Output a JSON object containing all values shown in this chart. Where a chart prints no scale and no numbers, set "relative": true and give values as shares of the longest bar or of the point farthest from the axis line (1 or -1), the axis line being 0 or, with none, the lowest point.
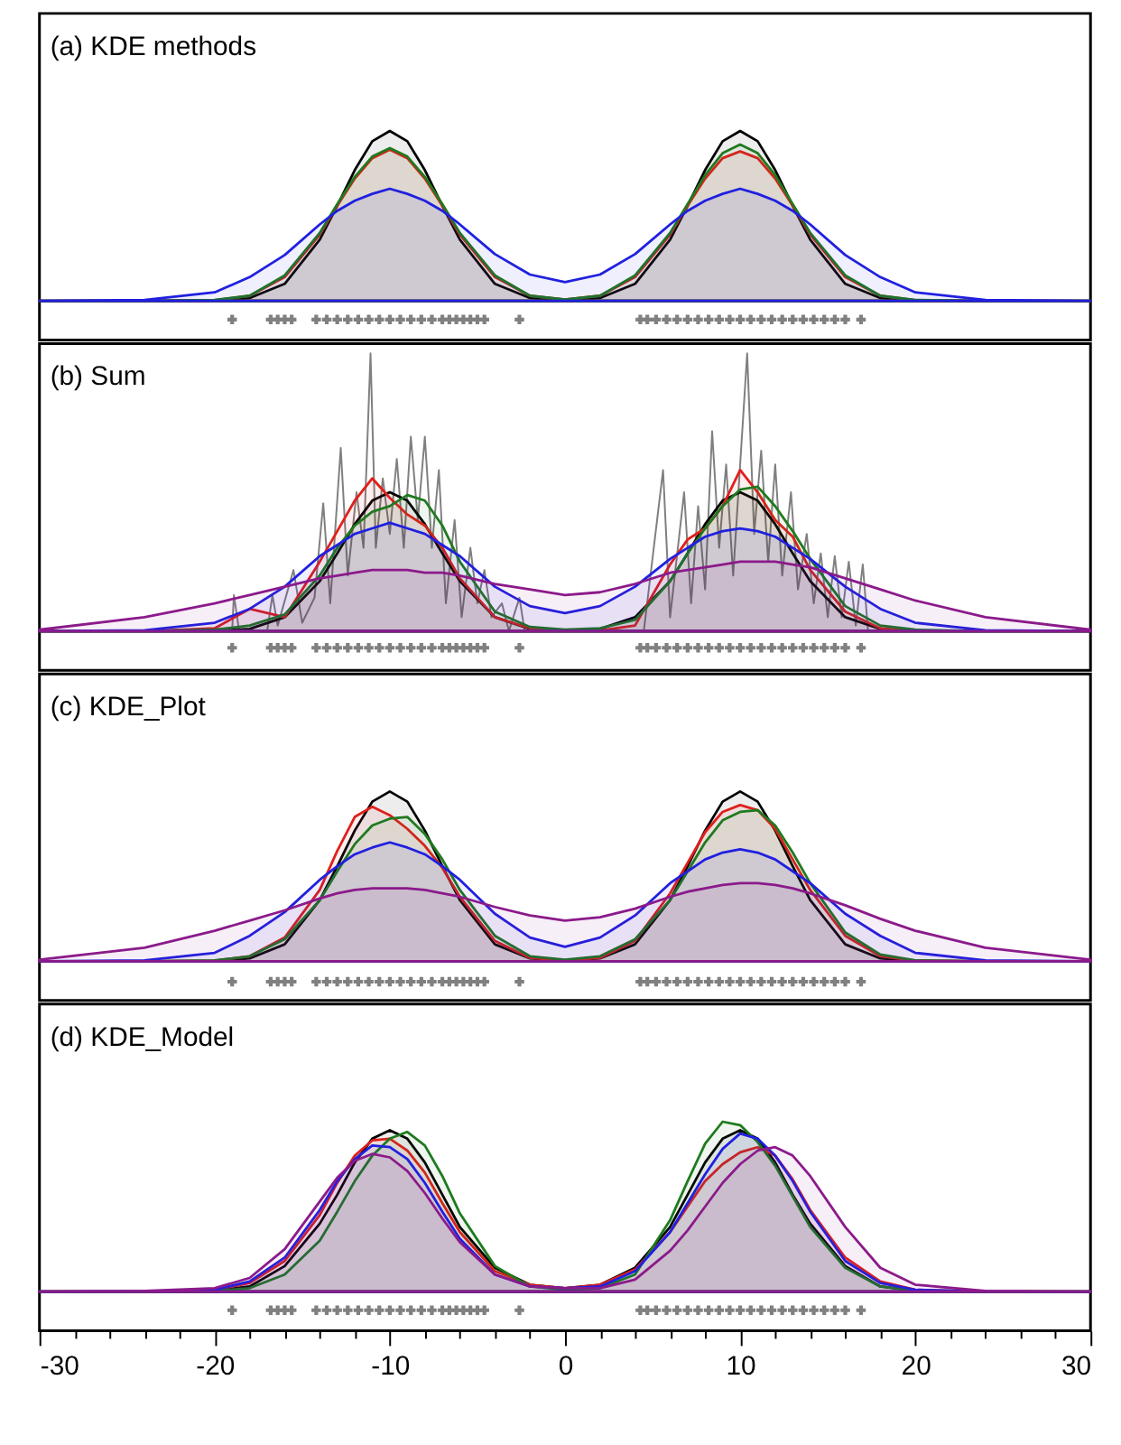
{
  "chart_data": [
    {
      "type": "area",
      "title": "(a) KDE methods",
      "relative": true,
      "xlim": [
        -30,
        30
      ],
      "tick_labels": false,
      "x": [
        -30,
        -24,
        -20,
        -18,
        -16,
        -14,
        -13,
        -12,
        -11,
        -10,
        -9,
        -8,
        -7,
        -6,
        -4,
        -2,
        0,
        2,
        4,
        6,
        7,
        8,
        9,
        10,
        11,
        12,
        13,
        14,
        16,
        18,
        20,
        24,
        30
      ],
      "series": [
        {
          "color": "#000000",
          "values": [
            0,
            0,
            0.002,
            0.017,
            0.1,
            0.36,
            0.56,
            0.77,
            0.94,
            1,
            0.94,
            0.77,
            0.56,
            0.36,
            0.1,
            0.017,
            0.004,
            0.017,
            0.1,
            0.36,
            0.56,
            0.77,
            0.94,
            1,
            0.94,
            0.77,
            0.56,
            0.36,
            0.1,
            0.017,
            0.002,
            0,
            0
          ]
        },
        {
          "color": "#e0201b",
          "values": [
            0,
            0,
            0.004,
            0.03,
            0.14,
            0.39,
            0.56,
            0.72,
            0.84,
            0.89,
            0.84,
            0.72,
            0.56,
            0.39,
            0.14,
            0.03,
            0.008,
            0.03,
            0.14,
            0.39,
            0.56,
            0.72,
            0.84,
            0.88,
            0.84,
            0.72,
            0.56,
            0.39,
            0.14,
            0.03,
            0.004,
            0,
            0
          ]
        },
        {
          "color": "#1f7a1f",
          "values": [
            0,
            0,
            0.005,
            0.03,
            0.15,
            0.4,
            0.57,
            0.73,
            0.85,
            0.9,
            0.85,
            0.73,
            0.57,
            0.4,
            0.15,
            0.03,
            0.008,
            0.03,
            0.15,
            0.4,
            0.57,
            0.74,
            0.87,
            0.92,
            0.87,
            0.74,
            0.57,
            0.4,
            0.15,
            0.03,
            0.005,
            0,
            0
          ]
        },
        {
          "color": "#2020e0",
          "values": [
            0,
            0.005,
            0.05,
            0.14,
            0.27,
            0.45,
            0.53,
            0.59,
            0.63,
            0.66,
            0.63,
            0.59,
            0.53,
            0.45,
            0.275,
            0.155,
            0.11,
            0.155,
            0.275,
            0.45,
            0.53,
            0.59,
            0.63,
            0.66,
            0.63,
            0.59,
            0.53,
            0.45,
            0.27,
            0.14,
            0.05,
            0.005,
            0
          ]
        },
        {
          "type": "scatter",
          "marker": "cross",
          "color": "#808080",
          "x": [
            -19,
            -16.8,
            -16.4,
            -16,
            -15.6,
            -14.2,
            -13.6,
            -13,
            -12.4,
            -11.8,
            -11.2,
            -10.6,
            -10,
            -9.4,
            -8.8,
            -8.2,
            -7.6,
            -7,
            -6.6,
            -6.2,
            -5.8,
            -5.4,
            -5,
            -4.6,
            -2.6,
            4.3,
            4.7,
            5.2,
            5.8,
            6.4,
            7,
            7.6,
            8.2,
            8.8,
            9.4,
            10,
            10.6,
            11.2,
            11.8,
            12.4,
            13,
            13.6,
            14.2,
            14.8,
            15.4,
            16,
            16.9
          ],
          "values": [
            -0.11,
            -0.11,
            -0.11,
            -0.11,
            -0.11,
            -0.11,
            -0.11,
            -0.11,
            -0.11,
            -0.11,
            -0.11,
            -0.11,
            -0.11,
            -0.11,
            -0.11,
            -0.11,
            -0.11,
            -0.11,
            -0.11,
            -0.11,
            -0.11,
            -0.11,
            -0.11,
            -0.11,
            -0.11,
            -0.11,
            -0.11,
            -0.11,
            -0.11,
            -0.11,
            -0.11,
            -0.11,
            -0.11,
            -0.11,
            -0.11,
            -0.11,
            -0.11,
            -0.11,
            -0.11,
            -0.11,
            -0.11,
            -0.11,
            -0.11,
            -0.11,
            -0.11,
            -0.11,
            -0.11
          ]
        }
      ]
    },
    {
      "type": "area",
      "title": "(b) Sum",
      "relative": true,
      "xlim": [
        -30,
        30
      ],
      "tick_labels": false,
      "x": [
        -30,
        -24,
        -20,
        -18,
        -16,
        -14,
        -13,
        -12,
        -11,
        -10,
        -9,
        -8,
        -7,
        -6,
        -4,
        -2,
        0,
        2,
        4,
        6,
        7,
        8,
        9,
        10,
        11,
        12,
        13,
        14,
        16,
        18,
        20,
        24,
        30
      ],
      "series": [
        {
          "type": "line",
          "color": "#808080",
          "x": [
            -30,
            -19,
            -18.9,
            -18.6,
            -17,
            -16.7,
            -16.4,
            -15.5,
            -15,
            -14.3,
            -13.8,
            -13.4,
            -12.8,
            -12.4,
            -11.9,
            -11.5,
            -11.1,
            -10.8,
            -10.4,
            -10,
            -9.6,
            -9.2,
            -8.8,
            -8.4,
            -8,
            -7.6,
            -7.2,
            -6.8,
            -6.3,
            -5.9,
            -5.4,
            -5,
            -4.6,
            -4.2,
            -3.6,
            -3.2,
            -2.6,
            -2.3,
            4.5,
            5.6,
            6,
            6.8,
            7.2,
            7.6,
            8,
            8.4,
            8.8,
            9.2,
            9.6,
            10.4,
            10.8,
            11.2,
            11.6,
            12,
            12.4,
            12.9,
            13.3,
            13.8,
            14.2,
            14.6,
            15,
            15.4,
            15.8,
            16.2,
            16.6,
            17,
            17.3,
            30
          ],
          "values": [
            0,
            0,
            0.13,
            0,
            0,
            0.13,
            0.02,
            0.22,
            0.03,
            0.12,
            0.46,
            0.1,
            0.66,
            0.2,
            0.5,
            0.3,
            1,
            0.3,
            0.55,
            0.35,
            0.62,
            0.3,
            0.7,
            0.4,
            0.7,
            0.3,
            0.58,
            0.1,
            0.4,
            0.05,
            0.3,
            0.1,
            0.22,
            0.05,
            0.1,
            0,
            0.12,
            0,
            0,
            0.58,
            0.05,
            0.5,
            0.1,
            0.45,
            0.15,
            0.72,
            0.3,
            0.6,
            0.2,
            1,
            0.35,
            0.65,
            0.25,
            0.6,
            0.2,
            0.5,
            0.15,
            0.35,
            0.1,
            0.28,
            0.05,
            0.27,
            0.05,
            0.25,
            0.02,
            0.24,
            0,
            0
          ]
        },
        {
          "color": "#000000",
          "values": [
            0,
            0,
            0.001,
            0.008,
            0.05,
            0.18,
            0.28,
            0.385,
            0.47,
            0.5,
            0.47,
            0.385,
            0.28,
            0.18,
            0.05,
            0.008,
            0.002,
            0.008,
            0.05,
            0.18,
            0.28,
            0.385,
            0.47,
            0.5,
            0.47,
            0.385,
            0.28,
            0.18,
            0.05,
            0.008,
            0.001,
            0,
            0
          ]
        },
        {
          "color": "#e0201b",
          "values": [
            0,
            0,
            0.01,
            0.08,
            0.05,
            0.25,
            0.36,
            0.47,
            0.55,
            0.48,
            0.42,
            0.38,
            0.3,
            0.19,
            0.05,
            0.01,
            0,
            0.002,
            0.02,
            0.24,
            0.33,
            0.37,
            0.45,
            0.58,
            0.5,
            0.4,
            0.34,
            0.22,
            0.07,
            0.01,
            0,
            0,
            0
          ]
        },
        {
          "color": "#1f7a1f",
          "values": [
            0,
            0,
            0.005,
            0.02,
            0.06,
            0.2,
            0.3,
            0.38,
            0.43,
            0.45,
            0.49,
            0.47,
            0.38,
            0.25,
            0.07,
            0.015,
            0.005,
            0.01,
            0.04,
            0.18,
            0.28,
            0.37,
            0.45,
            0.51,
            0.52,
            0.45,
            0.36,
            0.26,
            0.09,
            0.02,
            0.005,
            0,
            0
          ]
        },
        {
          "color": "#2020e0",
          "values": [
            0,
            0.003,
            0.03,
            0.08,
            0.16,
            0.27,
            0.31,
            0.35,
            0.37,
            0.39,
            0.37,
            0.35,
            0.31,
            0.27,
            0.16,
            0.09,
            0.065,
            0.09,
            0.16,
            0.26,
            0.3,
            0.34,
            0.36,
            0.37,
            0.36,
            0.34,
            0.3,
            0.26,
            0.16,
            0.08,
            0.03,
            0.003,
            0
          ]
        },
        {
          "color": "#8b1a8b",
          "values": [
            0.005,
            0.05,
            0.1,
            0.13,
            0.16,
            0.19,
            0.2,
            0.21,
            0.22,
            0.22,
            0.22,
            0.21,
            0.21,
            0.2,
            0.17,
            0.15,
            0.13,
            0.14,
            0.17,
            0.21,
            0.22,
            0.23,
            0.24,
            0.25,
            0.25,
            0.25,
            0.24,
            0.23,
            0.19,
            0.15,
            0.11,
            0.05,
            0.005
          ]
        },
        {
          "type": "scatter",
          "marker": "cross",
          "color": "#808080",
          "x": [
            -19,
            -16.8,
            -16.4,
            -16,
            -15.6,
            -14.2,
            -13.6,
            -13,
            -12.4,
            -11.8,
            -11.2,
            -10.6,
            -10,
            -9.4,
            -8.8,
            -8.2,
            -7.6,
            -7,
            -6.6,
            -6.2,
            -5.8,
            -5.4,
            -5,
            -4.6,
            -2.6,
            4.3,
            4.7,
            5.2,
            5.8,
            6.4,
            7,
            7.6,
            8.2,
            8.8,
            9.4,
            10,
            10.6,
            11.2,
            11.8,
            12.4,
            13,
            13.6,
            14.2,
            14.8,
            15.4,
            16,
            16.9
          ],
          "values": [
            -0.06,
            -0.06,
            -0.06,
            -0.06,
            -0.06,
            -0.06,
            -0.06,
            -0.06,
            -0.06,
            -0.06,
            -0.06,
            -0.06,
            -0.06,
            -0.06,
            -0.06,
            -0.06,
            -0.06,
            -0.06,
            -0.06,
            -0.06,
            -0.06,
            -0.06,
            -0.06,
            -0.06,
            -0.06,
            -0.06,
            -0.06,
            -0.06,
            -0.06,
            -0.06,
            -0.06,
            -0.06,
            -0.06,
            -0.06,
            -0.06,
            -0.06,
            -0.06,
            -0.06,
            -0.06,
            -0.06,
            -0.06,
            -0.06,
            -0.06,
            -0.06,
            -0.06,
            -0.06,
            -0.06
          ]
        }
      ]
    },
    {
      "type": "area",
      "title": "(c) KDE_Plot",
      "relative": true,
      "xlim": [
        -30,
        30
      ],
      "tick_labels": false,
      "x": [
        -30,
        -24,
        -20,
        -18,
        -16,
        -14,
        -13,
        -12,
        -11,
        -10,
        -9,
        -8,
        -7,
        -6,
        -4,
        -2,
        0,
        2,
        4,
        6,
        7,
        8,
        9,
        10,
        11,
        12,
        13,
        14,
        16,
        18,
        20,
        24,
        30
      ],
      "series": [
        {
          "color": "#000000",
          "values": [
            0,
            0,
            0.002,
            0.017,
            0.1,
            0.36,
            0.56,
            0.77,
            0.94,
            1,
            0.94,
            0.77,
            0.56,
            0.36,
            0.1,
            0.017,
            0.004,
            0.017,
            0.1,
            0.36,
            0.56,
            0.77,
            0.94,
            1,
            0.94,
            0.77,
            0.56,
            0.36,
            0.1,
            0.017,
            0.002,
            0,
            0
          ]
        },
        {
          "color": "#e0201b",
          "values": [
            0,
            0,
            0.004,
            0.03,
            0.14,
            0.42,
            0.65,
            0.85,
            0.91,
            0.86,
            0.78,
            0.68,
            0.55,
            0.38,
            0.12,
            0.02,
            0.005,
            0.02,
            0.12,
            0.4,
            0.58,
            0.76,
            0.88,
            0.92,
            0.89,
            0.78,
            0.6,
            0.42,
            0.15,
            0.03,
            0.004,
            0,
            0
          ]
        },
        {
          "color": "#1f7a1f",
          "values": [
            0,
            0,
            0.005,
            0.03,
            0.13,
            0.36,
            0.53,
            0.69,
            0.8,
            0.84,
            0.85,
            0.75,
            0.6,
            0.42,
            0.15,
            0.03,
            0.01,
            0.03,
            0.13,
            0.36,
            0.53,
            0.7,
            0.83,
            0.88,
            0.89,
            0.8,
            0.64,
            0.46,
            0.17,
            0.04,
            0.005,
            0,
            0
          ]
        },
        {
          "color": "#2020e0",
          "values": [
            0,
            0.005,
            0.05,
            0.15,
            0.29,
            0.48,
            0.56,
            0.63,
            0.67,
            0.7,
            0.67,
            0.63,
            0.56,
            0.48,
            0.28,
            0.14,
            0.085,
            0.14,
            0.27,
            0.46,
            0.53,
            0.6,
            0.64,
            0.66,
            0.64,
            0.6,
            0.53,
            0.46,
            0.28,
            0.15,
            0.05,
            0.005,
            0
          ]
        },
        {
          "color": "#8b1a8b",
          "values": [
            0.01,
            0.08,
            0.18,
            0.24,
            0.3,
            0.37,
            0.4,
            0.42,
            0.43,
            0.43,
            0.43,
            0.42,
            0.4,
            0.38,
            0.32,
            0.27,
            0.24,
            0.26,
            0.31,
            0.38,
            0.41,
            0.43,
            0.45,
            0.46,
            0.46,
            0.45,
            0.43,
            0.4,
            0.33,
            0.25,
            0.18,
            0.08,
            0.01
          ]
        },
        {
          "type": "scatter",
          "marker": "cross",
          "color": "#808080",
          "x": [
            -19,
            -16.8,
            -16.4,
            -16,
            -15.6,
            -14.2,
            -13.6,
            -13,
            -12.4,
            -11.8,
            -11.2,
            -10.6,
            -10,
            -9.4,
            -8.8,
            -8.2,
            -7.6,
            -7,
            -6.6,
            -6.2,
            -5.8,
            -5.4,
            -5,
            -4.6,
            -2.6,
            4.3,
            4.7,
            5.2,
            5.8,
            6.4,
            7,
            7.6,
            8.2,
            8.8,
            9.4,
            10,
            10.6,
            11.2,
            11.8,
            12.4,
            13,
            13.6,
            14.2,
            14.8,
            15.4,
            16,
            16.9
          ],
          "values": [
            -0.12,
            -0.12,
            -0.12,
            -0.12,
            -0.12,
            -0.12,
            -0.12,
            -0.12,
            -0.12,
            -0.12,
            -0.12,
            -0.12,
            -0.12,
            -0.12,
            -0.12,
            -0.12,
            -0.12,
            -0.12,
            -0.12,
            -0.12,
            -0.12,
            -0.12,
            -0.12,
            -0.12,
            -0.12,
            -0.12,
            -0.12,
            -0.12,
            -0.12,
            -0.12,
            -0.12,
            -0.12,
            -0.12,
            -0.12,
            -0.12,
            -0.12,
            -0.12,
            -0.12,
            -0.12,
            -0.12,
            -0.12,
            -0.12,
            -0.12,
            -0.12,
            -0.12,
            -0.12,
            -0.12
          ]
        }
      ]
    },
    {
      "type": "area",
      "title": "(d) KDE_Model",
      "relative": true,
      "xlim": [
        -30,
        30
      ],
      "tick_labels": "x",
      "xticks": [
        -30,
        {
          "value": -28,
          "label": null
        },
        {
          "value": -26,
          "label": null
        },
        {
          "value": -24,
          "label": null
        },
        {
          "value": -22,
          "label": null
        },
        -20,
        {
          "value": -18,
          "label": null
        },
        {
          "value": -16,
          "label": null
        },
        {
          "value": -14,
          "label": null
        },
        {
          "value": -12,
          "label": null
        },
        -10,
        {
          "value": -8,
          "label": null
        },
        {
          "value": -6,
          "label": null
        },
        {
          "value": -4,
          "label": null
        },
        {
          "value": -2,
          "label": null
        },
        0,
        {
          "value": 2,
          "label": null
        },
        {
          "value": 4,
          "label": null
        },
        {
          "value": 6,
          "label": null
        },
        {
          "value": 8,
          "label": null
        },
        10,
        {
          "value": 12,
          "label": null
        },
        {
          "value": 14,
          "label": null
        },
        {
          "value": 16,
          "label": null
        },
        {
          "value": 18,
          "label": null
        },
        20,
        {
          "value": 22,
          "label": null
        },
        {
          "value": 24,
          "label": null
        },
        {
          "value": 26,
          "label": null
        },
        {
          "value": 28,
          "label": null
        },
        30
      ],
      "x": [
        -30,
        -24,
        -20,
        -18,
        -16,
        -14,
        -13,
        -12,
        -11,
        -10,
        -9,
        -8,
        -7,
        -6,
        -4,
        -2,
        0,
        2,
        4,
        6,
        7,
        8,
        9,
        10,
        11,
        12,
        13,
        14,
        16,
        18,
        20,
        24,
        30
      ],
      "series": [
        {
          "color": "#000000",
          "values": [
            0,
            0,
            0.005,
            0.03,
            0.15,
            0.4,
            0.57,
            0.76,
            0.9,
            0.95,
            0.9,
            0.76,
            0.57,
            0.38,
            0.14,
            0.04,
            0.02,
            0.04,
            0.14,
            0.38,
            0.57,
            0.76,
            0.9,
            0.95,
            0.9,
            0.76,
            0.57,
            0.4,
            0.15,
            0.03,
            0.005,
            0,
            0
          ]
        },
        {
          "color": "#e0201b",
          "values": [
            0,
            0,
            0.01,
            0.05,
            0.18,
            0.45,
            0.64,
            0.8,
            0.89,
            0.9,
            0.83,
            0.7,
            0.52,
            0.35,
            0.12,
            0.04,
            0.02,
            0.04,
            0.13,
            0.35,
            0.5,
            0.65,
            0.75,
            0.82,
            0.85,
            0.8,
            0.66,
            0.48,
            0.2,
            0.06,
            0.01,
            0,
            0
          ]
        },
        {
          "color": "#1f7a1f",
          "values": [
            0,
            0,
            0.003,
            0.02,
            0.1,
            0.3,
            0.47,
            0.65,
            0.8,
            0.9,
            0.94,
            0.86,
            0.68,
            0.46,
            0.15,
            0.03,
            0.01,
            0.02,
            0.1,
            0.42,
            0.65,
            0.87,
            1,
            0.98,
            0.88,
            0.74,
            0.56,
            0.38,
            0.14,
            0.03,
            0.005,
            0,
            0
          ]
        },
        {
          "color": "#2020e0",
          "values": [
            0,
            0.001,
            0.01,
            0.06,
            0.2,
            0.48,
            0.65,
            0.78,
            0.86,
            0.85,
            0.78,
            0.64,
            0.47,
            0.31,
            0.1,
            0.03,
            0.02,
            0.03,
            0.12,
            0.35,
            0.52,
            0.69,
            0.84,
            0.93,
            0.9,
            0.8,
            0.65,
            0.47,
            0.18,
            0.05,
            0.01,
            0,
            0
          ]
        },
        {
          "color": "#8b1a8b",
          "values": [
            0,
            0.003,
            0.02,
            0.08,
            0.25,
            0.53,
            0.67,
            0.77,
            0.81,
            0.79,
            0.71,
            0.58,
            0.43,
            0.29,
            0.1,
            0.03,
            0.02,
            0.02,
            0.07,
            0.24,
            0.36,
            0.5,
            0.64,
            0.75,
            0.83,
            0.85,
            0.8,
            0.68,
            0.38,
            0.14,
            0.04,
            0.003,
            0
          ]
        },
        {
          "type": "scatter",
          "marker": "cross",
          "color": "#808080",
          "x": [
            -19,
            -16.8,
            -16.4,
            -16,
            -15.6,
            -14.2,
            -13.6,
            -13,
            -12.4,
            -11.8,
            -11.2,
            -10.6,
            -10,
            -9.4,
            -8.8,
            -8.2,
            -7.6,
            -7,
            -6.6,
            -6.2,
            -5.8,
            -5.4,
            -5,
            -4.6,
            -2.6,
            4.3,
            4.7,
            5.2,
            5.8,
            6.4,
            7,
            7.6,
            8.2,
            8.8,
            9.4,
            10,
            10.6,
            11.2,
            11.8,
            12.4,
            13,
            13.6,
            14.2,
            14.8,
            15.4,
            16,
            16.9
          ],
          "values": [
            -0.11,
            -0.11,
            -0.11,
            -0.11,
            -0.11,
            -0.11,
            -0.11,
            -0.11,
            -0.11,
            -0.11,
            -0.11,
            -0.11,
            -0.11,
            -0.11,
            -0.11,
            -0.11,
            -0.11,
            -0.11,
            -0.11,
            -0.11,
            -0.11,
            -0.11,
            -0.11,
            -0.11,
            -0.11,
            -0.11,
            -0.11,
            -0.11,
            -0.11,
            -0.11,
            -0.11,
            -0.11,
            -0.11,
            -0.11,
            -0.11,
            -0.11,
            -0.11,
            -0.11,
            -0.11,
            -0.11,
            -0.11,
            -0.11,
            -0.11,
            -0.11,
            -0.11,
            -0.11,
            -0.11
          ]
        }
      ]
    }
  ]
}
